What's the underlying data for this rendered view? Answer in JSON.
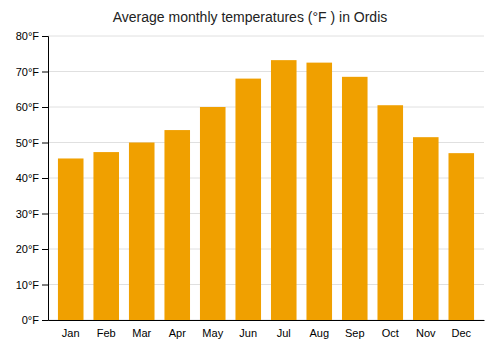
{
  "chart_data": {
    "type": "bar",
    "title": "Average monthly temperatures (°F ) in Ordis",
    "categories": [
      "Jan",
      "Feb",
      "Mar",
      "Apr",
      "May",
      "Jun",
      "Jul",
      "Aug",
      "Sep",
      "Oct",
      "Nov",
      "Dec"
    ],
    "values": [
      45.5,
      47.3,
      50.0,
      53.5,
      60.0,
      68.0,
      73.2,
      72.5,
      68.5,
      60.5,
      51.5,
      47.0
    ],
    "color": "#F0A000",
    "ylim": [
      0,
      80
    ],
    "yticks": [
      {
        "value": 0,
        "label": "0°F"
      },
      {
        "value": 10,
        "label": "10°F"
      },
      {
        "value": 20,
        "label": "20°F"
      },
      {
        "value": 30,
        "label": "30°F"
      },
      {
        "value": 40,
        "label": "40°F"
      },
      {
        "value": 50,
        "label": "50°F"
      },
      {
        "value": 60,
        "label": "60°F"
      },
      {
        "value": 70,
        "label": "70°F"
      },
      {
        "value": 80,
        "label": "80°F"
      }
    ],
    "grid": true
  }
}
